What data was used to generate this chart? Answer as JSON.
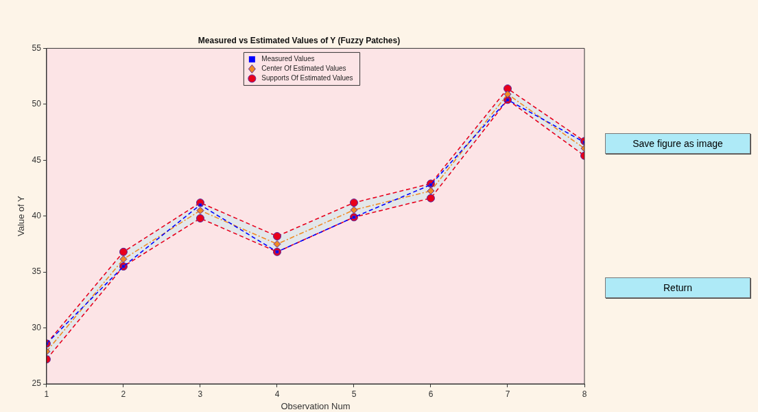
{
  "chart_data": {
    "type": "line",
    "title": "Measured vs Estimated Values of Y (Fuzzy Patches)",
    "xlabel": "Observation Num",
    "ylabel": "Value of Y",
    "x": [
      1,
      2,
      3,
      4,
      5,
      6,
      7,
      8
    ],
    "series": [
      {
        "name": "Measured Values",
        "color": "#0000ff",
        "marker": "square",
        "line_style": "dashed",
        "values": [
          28.6,
          35.5,
          41.0,
          36.8,
          39.9,
          42.8,
          50.4,
          46.6
        ]
      },
      {
        "name": "Center Of Estimated Values",
        "color": "#f08a24",
        "marker": "diamond",
        "line_style": "dashdot",
        "values": [
          27.9,
          36.15,
          40.5,
          37.5,
          40.55,
          42.25,
          50.9,
          46.05
        ],
        "lower": [
          27.2,
          35.5,
          39.8,
          36.8,
          39.9,
          41.6,
          50.4,
          45.4
        ],
        "upper": [
          28.6,
          36.8,
          41.2,
          38.2,
          41.2,
          42.9,
          51.4,
          46.7
        ]
      },
      {
        "name": "Supports Of Estimated Values",
        "color": "#e8001c",
        "marker": "circle",
        "line_style": "dashed",
        "values": [
          28.6,
          36.8,
          41.2,
          38.2,
          41.2,
          42.9,
          51.4,
          46.7
        ]
      },
      {
        "color": "#e8001c",
        "marker": "circle",
        "line_style": "dashed",
        "values": [
          27.2,
          35.5,
          39.8,
          36.8,
          39.9,
          41.6,
          50.4,
          45.4
        ]
      }
    ],
    "xlim": [
      1,
      8
    ],
    "xticks": [
      1,
      2,
      3,
      4,
      5,
      6,
      7,
      8
    ],
    "ylim": [
      25,
      55
    ],
    "yticks": [
      25,
      30,
      35,
      40,
      45,
      50,
      55
    ],
    "grid": false,
    "legend": "top",
    "annotations": [
      "Save figure as image",
      "Return"
    ]
  }
}
